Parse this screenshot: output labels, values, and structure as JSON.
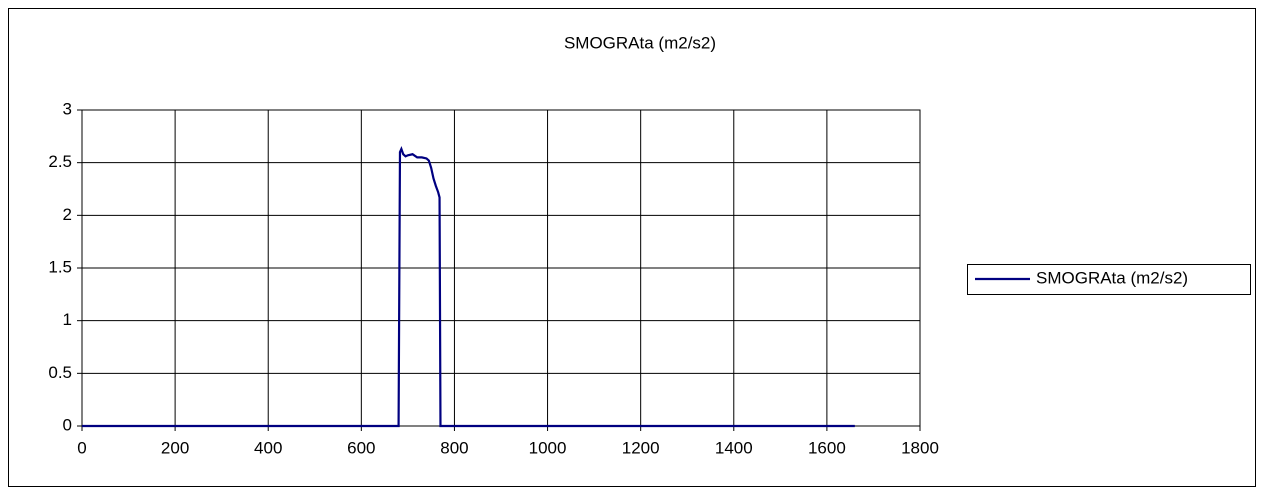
{
  "chart_data": {
    "type": "line",
    "title": "SMOGRAta (m2/s2)",
    "x": [
      0,
      680,
      683,
      686,
      690,
      695,
      700,
      710,
      720,
      730,
      740,
      745,
      750,
      755,
      760,
      765,
      768,
      770,
      1660
    ],
    "series": [
      {
        "name": "SMOGRAta (m2/s2)",
        "color": "#000080",
        "values": [
          0,
          0,
          2.6,
          2.63,
          2.58,
          2.56,
          2.57,
          2.58,
          2.55,
          2.55,
          2.54,
          2.52,
          2.45,
          2.35,
          2.28,
          2.22,
          2.17,
          0,
          0
        ]
      }
    ],
    "xlim": [
      0,
      1800
    ],
    "xticks": [
      0,
      200,
      400,
      600,
      800,
      1000,
      1200,
      1400,
      1600,
      1800
    ],
    "ylim": [
      0,
      3
    ],
    "yticks": [
      0,
      0.5,
      1,
      1.5,
      2,
      2.5,
      3
    ],
    "grid": true,
    "legend": "right"
  }
}
